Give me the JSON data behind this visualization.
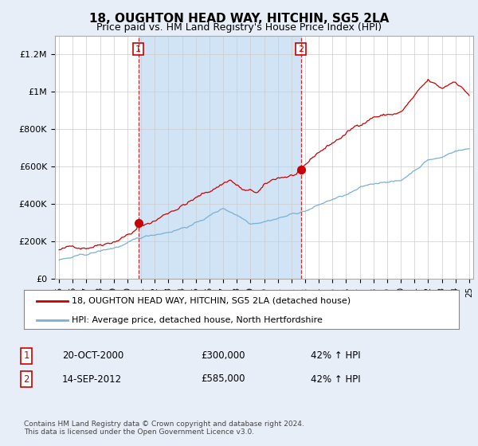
{
  "title": "18, OUGHTON HEAD WAY, HITCHIN, SG5 2LA",
  "subtitle": "Price paid vs. HM Land Registry's House Price Index (HPI)",
  "legend_line1": "18, OUGHTON HEAD WAY, HITCHIN, SG5 2LA (detached house)",
  "legend_line2": "HPI: Average price, detached house, North Hertfordshire",
  "annotation1_label": "1",
  "annotation1_date": "20-OCT-2000",
  "annotation1_price": "£300,000",
  "annotation1_hpi": "42% ↑ HPI",
  "annotation2_label": "2",
  "annotation2_date": "14-SEP-2012",
  "annotation2_price": "£585,000",
  "annotation2_hpi": "42% ↑ HPI",
  "footer": "Contains HM Land Registry data © Crown copyright and database right 2024.\nThis data is licensed under the Open Government Licence v3.0.",
  "bg_color": "#e8eef8",
  "plot_bg_color": "#ffffff",
  "red_line_color": "#cc0000",
  "blue_line_color": "#7ab0d4",
  "shade_color": "#d0e4f5",
  "vline_color": "#cc0000",
  "ylim": [
    0,
    1300000
  ],
  "yticks": [
    0,
    200000,
    400000,
    600000,
    800000,
    1000000,
    1200000
  ],
  "ytick_labels": [
    "£0",
    "£200K",
    "£400K",
    "£600K",
    "£800K",
    "£1M",
    "£1.2M"
  ],
  "xstart_year": 1995,
  "xend_year": 2025,
  "sale1_year": 2000.8,
  "sale1_price": 300000,
  "sale2_year": 2012.7,
  "sale2_price": 585000,
  "prop_anchors_t": [
    1995,
    1997,
    1999,
    2000.8,
    2002,
    2004,
    2006,
    2007.5,
    2008.5,
    2009.5,
    2010,
    2011,
    2012.7,
    2014,
    2016,
    2018,
    2020,
    2021,
    2022,
    2023,
    2024,
    2025
  ],
  "prop_anchors_v": [
    155000,
    175000,
    230000,
    300000,
    340000,
    430000,
    500000,
    570000,
    510000,
    490000,
    520000,
    560000,
    585000,
    680000,
    780000,
    880000,
    900000,
    980000,
    1050000,
    1000000,
    1050000,
    980000
  ],
  "hpi_anchors_t": [
    1995,
    1997,
    1999,
    2001,
    2003,
    2005,
    2007,
    2008,
    2009,
    2010,
    2011,
    2012,
    2013,
    2014,
    2015,
    2016,
    2017,
    2018,
    2019,
    2020,
    2021,
    2022,
    2023,
    2024,
    2025
  ],
  "hpi_anchors_v": [
    100000,
    120000,
    155000,
    200000,
    240000,
    290000,
    370000,
    340000,
    300000,
    320000,
    340000,
    360000,
    380000,
    410000,
    440000,
    460000,
    490000,
    510000,
    530000,
    530000,
    590000,
    650000,
    660000,
    700000,
    710000
  ]
}
